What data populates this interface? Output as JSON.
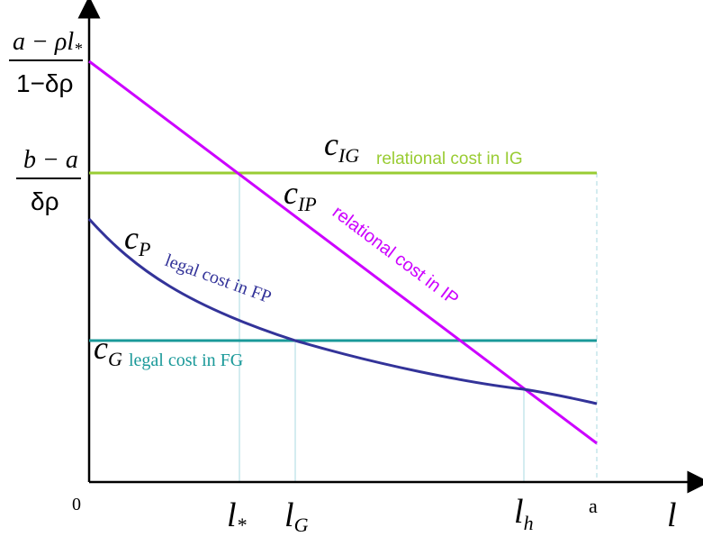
{
  "colors": {
    "axis": "#000000",
    "c_ig": "#99cc33",
    "c_ip": "#cc00ff",
    "c_p": "#333399",
    "c_g": "#1a9999",
    "guide": "#a8d8e0"
  },
  "y_axis_labels": {
    "top_num": "a − ρl",
    "top_num_sub": "*",
    "top_den": "1−δρ",
    "mid_num": "b − a",
    "mid_den": "δρ"
  },
  "x_axis_labels": {
    "origin": "0",
    "l_star": "l",
    "l_star_sub": "*",
    "l_g": "l",
    "l_g_sub": "G",
    "l_h": "l",
    "l_h_sub": "h",
    "a": "a",
    "axis_var": "l"
  },
  "curves": {
    "c_ig": {
      "symbol": "c",
      "sub": "IG",
      "label": "relational cost in IG"
    },
    "c_ip": {
      "symbol": "c",
      "sub": "IP",
      "label": "relational cost in IP"
    },
    "c_p": {
      "symbol": "c",
      "sub": "P",
      "label": "legal cost in FP"
    },
    "c_g": {
      "symbol": "c",
      "sub": "G",
      "label": "legal cost in FG"
    }
  }
}
